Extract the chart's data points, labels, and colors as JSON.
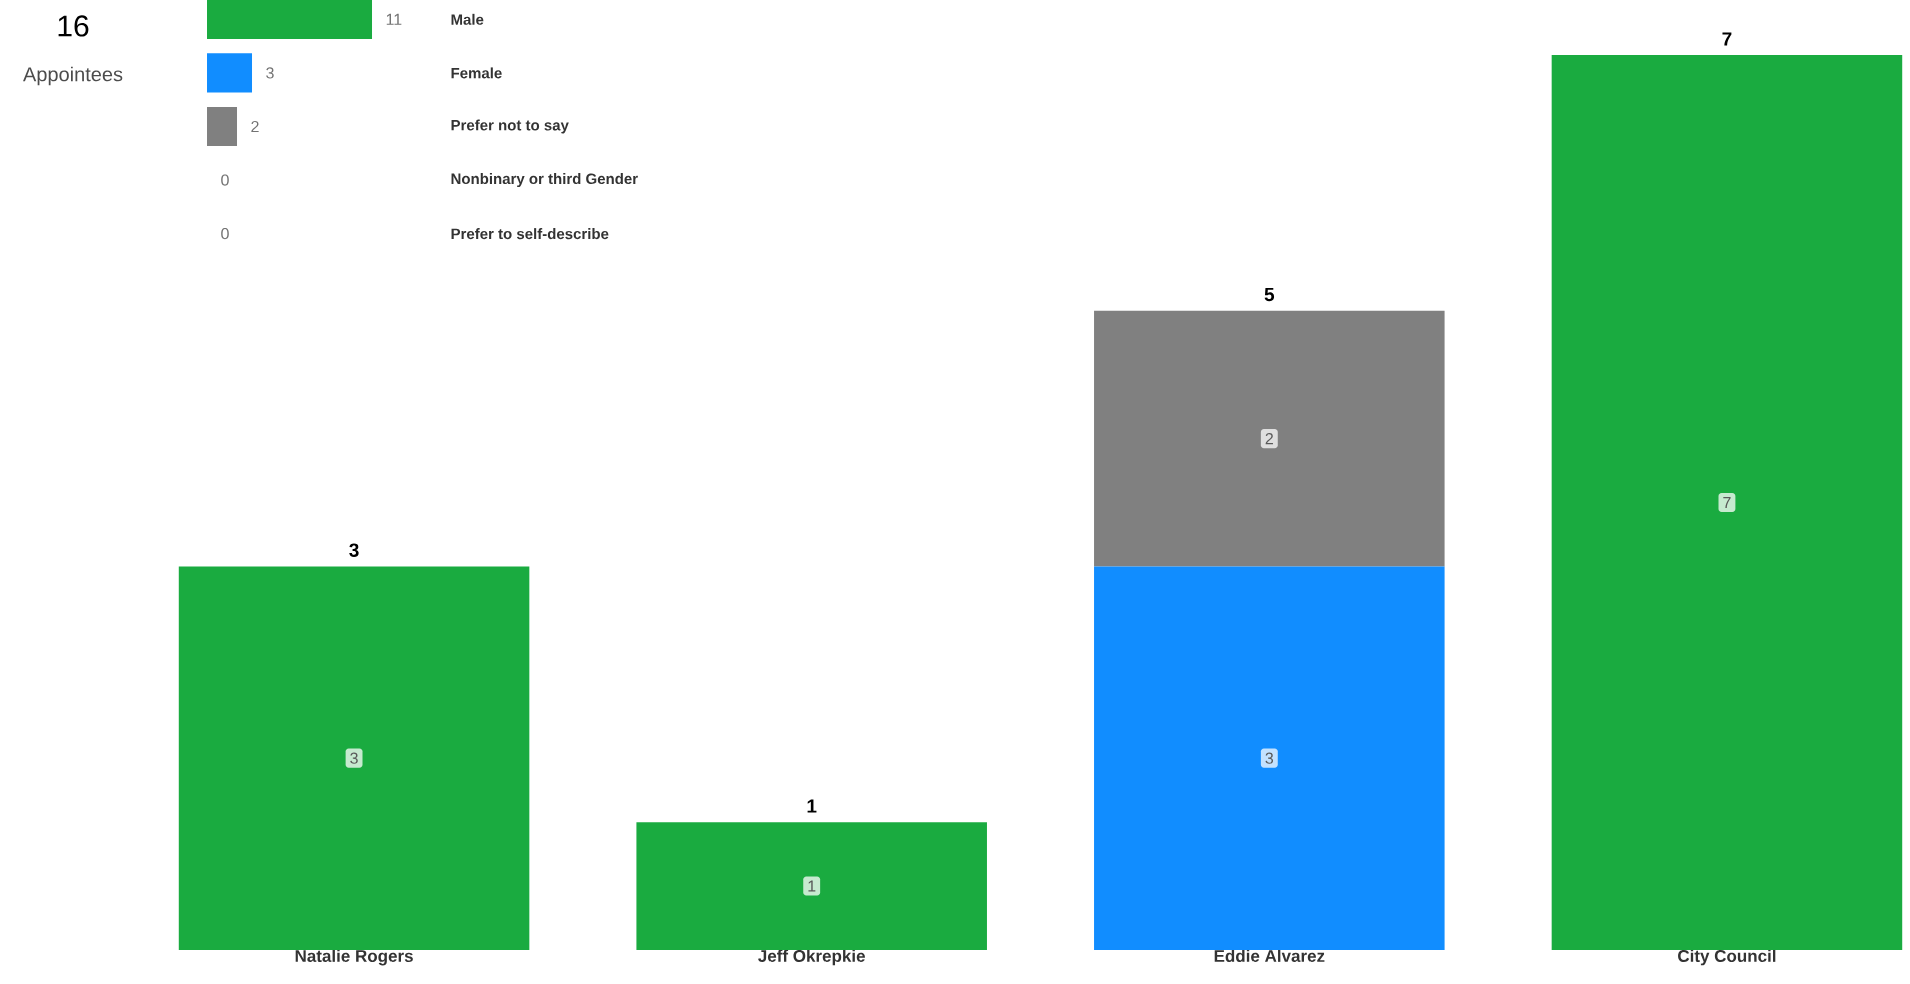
{
  "chart_data": [
    {
      "type": "other",
      "title": "16",
      "subtitle": "Appointees"
    },
    {
      "type": "bar",
      "orientation": "horizontal",
      "categories": [
        "Male",
        "Female",
        "Prefer not to say",
        "Nonbinary or third Gender",
        "Prefer to self-describe"
      ],
      "values": [
        11,
        3,
        2,
        0,
        0
      ],
      "colors": [
        "#1aab40",
        "#118dff",
        "#808080",
        "#808080",
        "#808080"
      ],
      "data_labels": true
    },
    {
      "type": "bar",
      "stacked": true,
      "categories": [
        "Natalie Rogers",
        "Jeff Okrepkie",
        "Eddie Alvarez",
        "City Council"
      ],
      "series": [
        {
          "color": "#1aab40",
          "values": [
            3,
            1,
            null,
            7
          ],
          "value_labels": [
            "3",
            "1",
            null,
            "7"
          ]
        },
        {
          "color": "#118dff",
          "values": [
            null,
            null,
            3,
            null
          ],
          "value_labels": [
            null,
            null,
            "3",
            null
          ]
        },
        {
          "color": "#808080",
          "values": [
            null,
            null,
            2,
            null
          ],
          "value_labels": [
            null,
            null,
            "2",
            null
          ]
        }
      ],
      "totals": [
        "3",
        "1",
        "5",
        "7"
      ]
    }
  ]
}
